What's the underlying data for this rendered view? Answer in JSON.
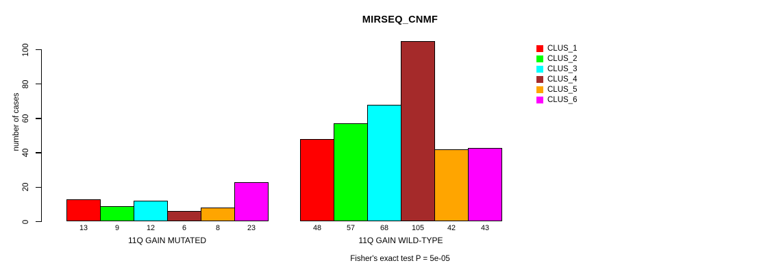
{
  "chart_data": {
    "type": "bar",
    "title": "MIRSEQ_CNMF",
    "ylabel": "number of cases",
    "xlabel": "",
    "ylim": [
      0,
      105
    ],
    "yticks": [
      0,
      20,
      40,
      60,
      80,
      100
    ],
    "grid": false,
    "bar_value_labels_shown": true,
    "groups": [
      {
        "label": "11Q GAIN MUTATED",
        "values": [
          13,
          9,
          12,
          6,
          8,
          23
        ]
      },
      {
        "label": "11Q GAIN WILD-TYPE",
        "values": [
          48,
          57,
          68,
          105,
          42,
          43
        ]
      }
    ],
    "bar_colors": [
      "#ff0000",
      "#00ff00",
      "#00ffff",
      "#a52a2a",
      "#ffa500",
      "#ff00ff"
    ],
    "legend": {
      "position": "right-top-outside",
      "entries": [
        {
          "label": "CLUS_1",
          "color": "#ff0000"
        },
        {
          "label": "CLUS_2",
          "color": "#00ff00"
        },
        {
          "label": "CLUS_3",
          "color": "#00ffff"
        },
        {
          "label": "CLUS_4",
          "color": "#a52a2a"
        },
        {
          "label": "CLUS_5",
          "color": "#ffa500"
        },
        {
          "label": "CLUS_6",
          "color": "#ff00ff"
        }
      ]
    },
    "annotation": "Fisher's exact test P = 5e-05"
  }
}
